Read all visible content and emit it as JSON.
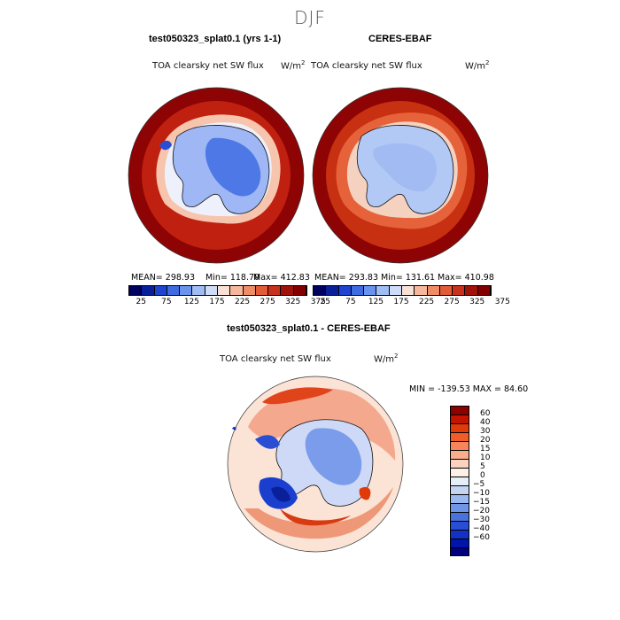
{
  "season": "DJF",
  "panels": [
    {
      "title": "test050323_splat0.1 (yrs 1-1)",
      "variable": "TOA clearsky net SW flux",
      "units_base": "W/m",
      "units_exp": "2",
      "mean": "MEAN= 298.93",
      "min": "Min= 118.70",
      "max": "Max= 412.83"
    },
    {
      "title": "CERES-EBAF",
      "variable": "TOA clearsky net SW flux",
      "units_base": "W/m",
      "units_exp": "2",
      "mean": "MEAN= 293.83",
      "min": "Min= 131.61",
      "max": "Max= 410.98"
    }
  ],
  "diff_panel": {
    "title": "test050323_splat0.1 - CERES-EBAF",
    "variable": "TOA clearsky net SW flux",
    "units_base": "W/m",
    "units_exp": "2",
    "minmax": "MIN = -139.53 MAX =  84.60"
  },
  "colorbar_abs": {
    "colors": [
      "#00005f",
      "#0a1f9a",
      "#1f45d0",
      "#3f6be0",
      "#6a93ee",
      "#9fbcf5",
      "#cfdcf7",
      "#f8e0d6",
      "#f5b89c",
      "#ef8c66",
      "#e25c38",
      "#c8311c",
      "#a0130a",
      "#820000"
    ],
    "ticks": [
      "25",
      "75",
      "125",
      "175",
      "225",
      "275",
      "325",
      "375"
    ]
  },
  "colorbar_diff": {
    "colors": [
      "#8c0000",
      "#c41300",
      "#e03a0a",
      "#f25b2a",
      "#f7845a",
      "#f9ad8c",
      "#fbd2bf",
      "#fdf0e7",
      "#e6eefa",
      "#c4d5f4",
      "#9ab8ee",
      "#6f95e6",
      "#4a72dd",
      "#2a4ed3",
      "#1431c5",
      "#0016a8",
      "#000080"
    ],
    "ticks": [
      "60",
      "40",
      "30",
      "20",
      "15",
      "10",
      "5",
      "0",
      "−5",
      "−10",
      "−15",
      "−20",
      "−30",
      "−40",
      "−60"
    ]
  }
}
